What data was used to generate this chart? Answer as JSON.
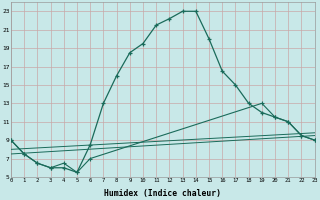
{
  "xlabel": "Humidex (Indice chaleur)",
  "background_color": "#c8e8e8",
  "grid_color": "#c8a8a8",
  "line_color": "#1a6b5a",
  "xlim": [
    0,
    23
  ],
  "ylim": [
    5,
    24
  ],
  "yticks": [
    5,
    7,
    9,
    11,
    13,
    15,
    17,
    19,
    21,
    23
  ],
  "xticks": [
    0,
    1,
    2,
    3,
    4,
    5,
    6,
    7,
    8,
    9,
    10,
    11,
    12,
    13,
    14,
    15,
    16,
    17,
    18,
    19,
    20,
    21,
    22,
    23
  ],
  "curve1_x": [
    0,
    1,
    2,
    3,
    4,
    5,
    6,
    7,
    8,
    9,
    10,
    11,
    12,
    13,
    14,
    15,
    16,
    17,
    18,
    19,
    20,
    21,
    22,
    23
  ],
  "curve1_y": [
    9.0,
    7.5,
    6.5,
    6.0,
    6.0,
    5.5,
    8.5,
    13.0,
    16.0,
    18.5,
    19.5,
    21.5,
    22.2,
    23.0,
    23.0,
    20.0,
    16.5,
    15.0,
    13.0,
    12.0,
    11.5,
    11.0,
    9.5,
    9.0
  ],
  "curve2_x": [
    0,
    1,
    2,
    3,
    4,
    5,
    6,
    19,
    20,
    21,
    22,
    23
  ],
  "curve2_y": [
    9.0,
    7.5,
    6.5,
    6.0,
    6.5,
    5.5,
    7.0,
    13.0,
    11.5,
    11.0,
    9.5,
    9.0
  ],
  "line3_x": [
    0,
    23
  ],
  "line3_y": [
    7.5,
    9.5
  ],
  "line4_x": [
    0,
    23
  ],
  "line4_y": [
    8.0,
    9.8
  ]
}
